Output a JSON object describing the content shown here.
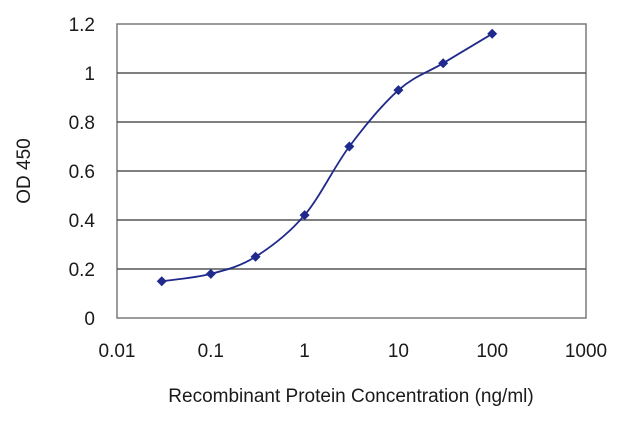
{
  "chart_data": {
    "type": "line",
    "title": "",
    "xlabel": "Recombinant Protein Concentration (ng/ml)",
    "ylabel": "OD 450",
    "x_scale": "log",
    "xlim": [
      0.01,
      1000
    ],
    "ylim": [
      0,
      1.2
    ],
    "x_ticks": [
      0.01,
      0.1,
      1,
      10,
      100,
      1000
    ],
    "x_tick_labels": [
      "0.01",
      "0.1",
      "1",
      "10",
      "100",
      "1000"
    ],
    "y_ticks": [
      0,
      0.2,
      0.4,
      0.6,
      0.8,
      1,
      1.2
    ],
    "y_tick_labels": [
      "0",
      "0.2",
      "0.4",
      "0.6",
      "0.8",
      "1",
      "1.2"
    ],
    "grid": "horizontal",
    "legend": "none",
    "series": [
      {
        "color": "#1f2a8c",
        "marker": "diamond",
        "x": [
          0.03,
          0.1,
          0.3,
          1,
          3,
          10,
          30,
          100
        ],
        "y": [
          0.15,
          0.18,
          0.25,
          0.42,
          0.7,
          0.93,
          1.04,
          1.16
        ]
      }
    ]
  }
}
